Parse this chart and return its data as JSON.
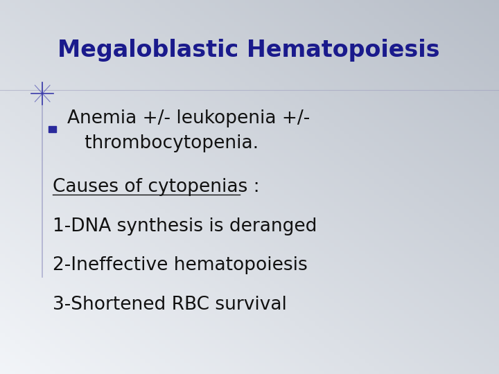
{
  "title": "Megaloblastic Hematopoiesis",
  "title_color": "#1a1a8c",
  "title_fontsize": 24,
  "bullet_text_line1": "Anemia +/- leukopenia +/-",
  "bullet_text_line2": "   thrombocytopenia.",
  "bullet_color": "#111111",
  "bullet_fontsize": 19,
  "bullet_marker_color": "#2a2a9c",
  "body_lines": [
    "Causes of cytopenias :",
    "1-DNA synthesis is deranged",
    "2-Ineffective hematopoiesis",
    "3-Shortened RBC survival"
  ],
  "body_fontsize": 19,
  "body_color": "#111111",
  "underline_line_index": 0,
  "underline_text": "Causes of cytopenias ",
  "accent_color": "#3a3aaa",
  "left_bar_color": "#8888bb",
  "figwidth": 7.2,
  "figheight": 5.4,
  "dpi": 100
}
